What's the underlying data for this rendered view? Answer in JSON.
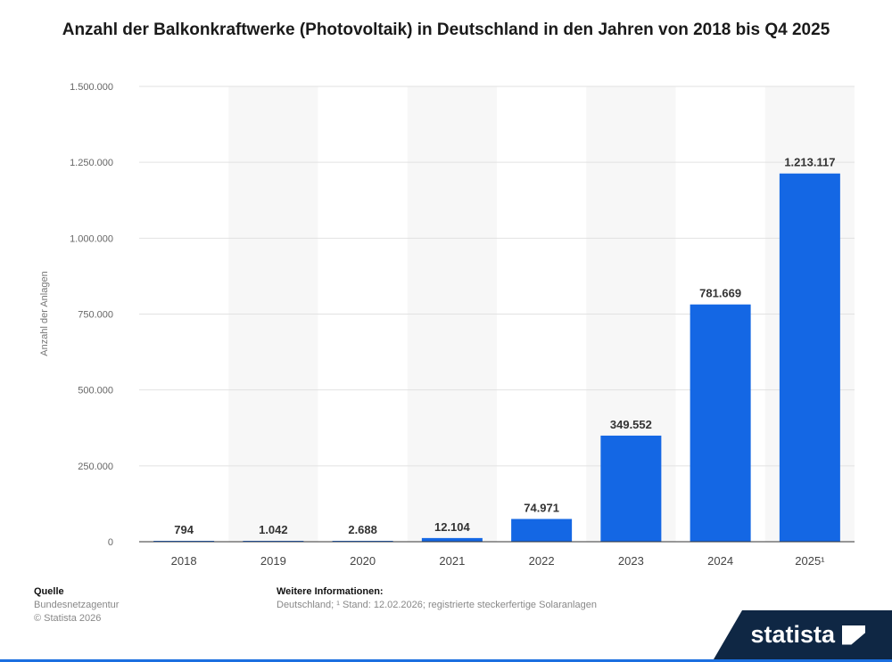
{
  "title": "Anzahl der Balkonkraftwerke (Photovoltaik) in Deutschland in den Jahren von 2018 bis Q4 2025",
  "chart_data": {
    "type": "bar",
    "categories": [
      "2018",
      "2019",
      "2020",
      "2021",
      "2022",
      "2023",
      "2024",
      "2025¹"
    ],
    "values": [
      794,
      1042,
      2688,
      12104,
      74971,
      349552,
      781669,
      1213117
    ],
    "value_labels": [
      "794",
      "1.042",
      "2.688",
      "12.104",
      "74.971",
      "349.552",
      "781.669",
      "1.213.117"
    ],
    "ylabel": "Anzahl der Anlagen",
    "ylim": [
      0,
      1500000
    ],
    "yticks": [
      0,
      250000,
      500000,
      750000,
      1000000,
      1250000,
      1500000
    ],
    "ytick_labels": [
      "0",
      "250.000",
      "500.000",
      "750.000",
      "1.000.000",
      "1.250.000",
      "1.500.000"
    ],
    "bar_color": "#1467e4",
    "grid": true
  },
  "footer": {
    "source_heading": "Quelle",
    "source_lines": [
      "Bundesnetzagentur",
      "© Statista 2026"
    ],
    "info_heading": "Weitere Informationen:",
    "info_text": "Deutschland; ¹ Stand: 12.02.2026; registrierte steckerfertige Solaranlagen"
  },
  "brand": {
    "name": "statista",
    "color": "#0f2744"
  }
}
